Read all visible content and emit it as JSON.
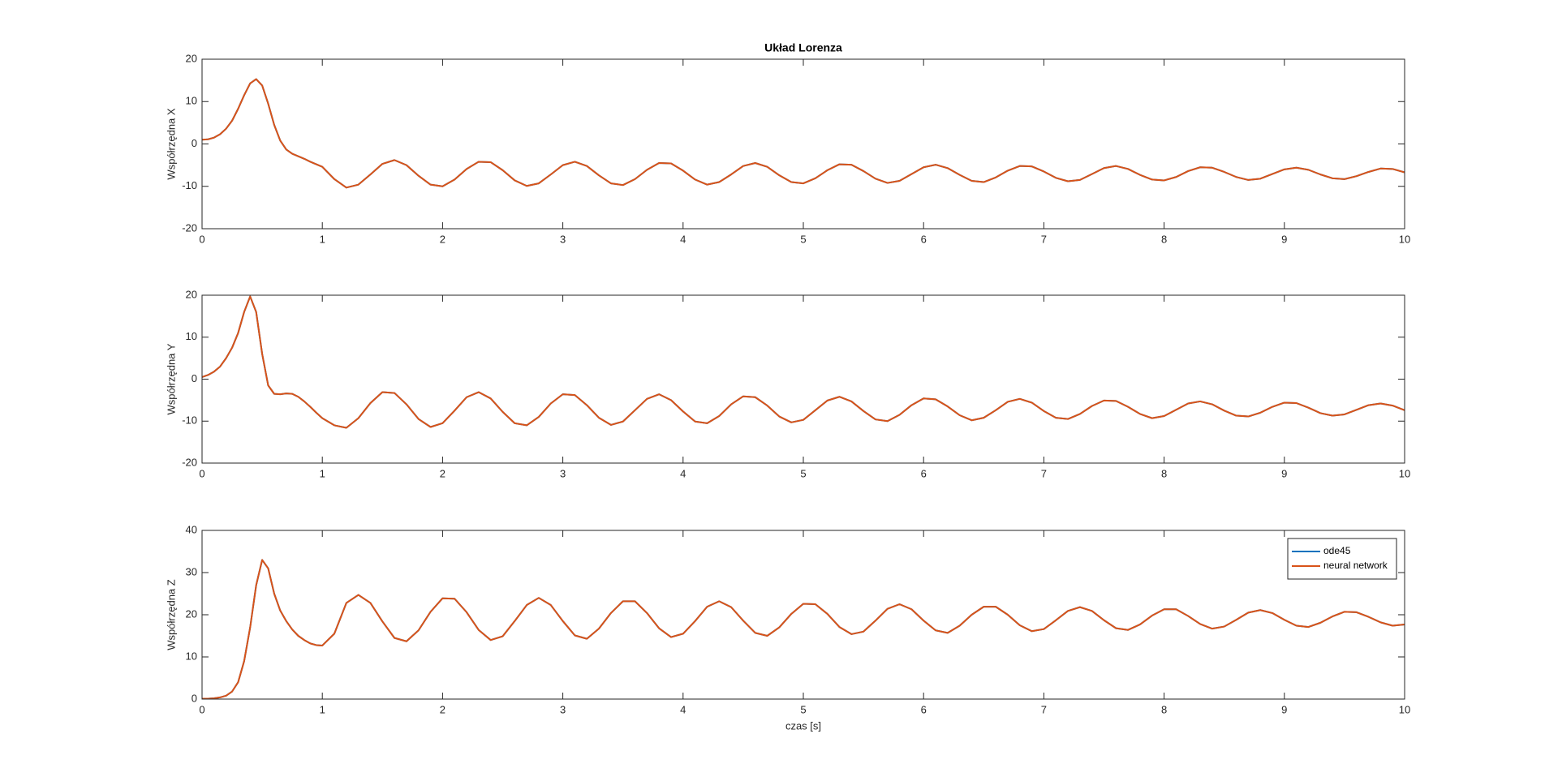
{
  "chart_data": [
    {
      "type": "line",
      "title": "Układ Lorenza",
      "ylabel": "Współrzędna X",
      "x": [
        0,
        0.05,
        0.1,
        0.15,
        0.2,
        0.25,
        0.3,
        0.35,
        0.4,
        0.45,
        0.5,
        0.55,
        0.6,
        0.65,
        0.7,
        0.75,
        0.8,
        0.85,
        0.9,
        0.95,
        1,
        1.1,
        1.2,
        1.3,
        1.4,
        1.5,
        1.6,
        1.7,
        1.8,
        1.9,
        2,
        2.1,
        2.2,
        2.3,
        2.4,
        2.5,
        2.6,
        2.7,
        2.8,
        2.9,
        3,
        3.1,
        3.2,
        3.3,
        3.4,
        3.5,
        3.6,
        3.7,
        3.8,
        3.9,
        4,
        4.1,
        4.2,
        4.3,
        4.4,
        4.5,
        4.6,
        4.7,
        4.8,
        4.9,
        5,
        5.1,
        5.2,
        5.3,
        5.4,
        5.5,
        5.6,
        5.7,
        5.8,
        5.9,
        6,
        6.1,
        6.2,
        6.3,
        6.4,
        6.5,
        6.6,
        6.7,
        6.8,
        6.9,
        7,
        7.1,
        7.2,
        7.3,
        7.4,
        7.5,
        7.6,
        7.7,
        7.8,
        7.9,
        8,
        8.1,
        8.2,
        8.3,
        8.4,
        8.5,
        8.6,
        8.7,
        8.8,
        8.9,
        9,
        9.1,
        9.2,
        9.3,
        9.4,
        9.5,
        9.6,
        9.7,
        9.8,
        9.9,
        10
      ],
      "series": [
        {
          "color": "#0072BD",
          "values": [
            1,
            1.1,
            1.5,
            2.3,
            3.6,
            5.5,
            8.3,
            11.5,
            14.3,
            15.3,
            13.8,
            9.5,
            4.5,
            0.8,
            -1.3,
            -2.3,
            -2.9,
            -3.5,
            -4.2,
            -4.8,
            -5.4,
            -8.3,
            -10.3,
            -9.6,
            -7.2,
            -4.7,
            -3.8,
            -5.0,
            -7.5,
            -9.6,
            -10.0,
            -8.4,
            -5.9,
            -4.2,
            -4.3,
            -6.2,
            -8.6,
            -9.9,
            -9.3,
            -7.2,
            -5.0,
            -4.2,
            -5.2,
            -7.4,
            -9.3,
            -9.7,
            -8.3,
            -6.1,
            -4.5,
            -4.6,
            -6.3,
            -8.4,
            -9.6,
            -9.0,
            -7.2,
            -5.2,
            -4.5,
            -5.4,
            -7.4,
            -9.0,
            -9.3,
            -8.1,
            -6.2,
            -4.8,
            -4.9,
            -6.4,
            -8.2,
            -9.2,
            -8.7,
            -7.1,
            -5.5,
            -4.9,
            -5.7,
            -7.3,
            -8.7,
            -9.0,
            -7.9,
            -6.3,
            -5.2,
            -5.3,
            -6.5,
            -8.0,
            -8.8,
            -8.5,
            -7.1,
            -5.7,
            -5.2,
            -5.9,
            -7.3,
            -8.4,
            -8.6,
            -7.8,
            -6.4,
            -5.5,
            -5.6,
            -6.6,
            -7.8,
            -8.5,
            -8.2,
            -7.1,
            -6.0,
            -5.6,
            -6.1,
            -7.2,
            -8.1,
            -8.3,
            -7.6,
            -6.6,
            -5.8,
            -5.9,
            -6.7
          ]
        },
        {
          "color": "#D95319",
          "values": [
            1,
            1.1,
            1.5,
            2.3,
            3.6,
            5.5,
            8.3,
            11.5,
            14.3,
            15.3,
            13.8,
            9.5,
            4.5,
            0.8,
            -1.3,
            -2.3,
            -2.9,
            -3.5,
            -4.2,
            -4.8,
            -5.4,
            -8.3,
            -10.3,
            -9.6,
            -7.2,
            -4.7,
            -3.8,
            -5.0,
            -7.5,
            -9.6,
            -10.0,
            -8.4,
            -5.9,
            -4.2,
            -4.3,
            -6.2,
            -8.6,
            -9.9,
            -9.3,
            -7.2,
            -5.0,
            -4.2,
            -5.2,
            -7.4,
            -9.3,
            -9.7,
            -8.3,
            -6.1,
            -4.5,
            -4.6,
            -6.3,
            -8.4,
            -9.6,
            -9.0,
            -7.2,
            -5.2,
            -4.5,
            -5.4,
            -7.4,
            -9.0,
            -9.3,
            -8.1,
            -6.2,
            -4.8,
            -4.9,
            -6.4,
            -8.2,
            -9.2,
            -8.7,
            -7.1,
            -5.5,
            -4.9,
            -5.7,
            -7.3,
            -8.7,
            -9.0,
            -7.9,
            -6.3,
            -5.2,
            -5.3,
            -6.5,
            -8.0,
            -8.8,
            -8.5,
            -7.1,
            -5.7,
            -5.2,
            -5.9,
            -7.3,
            -8.4,
            -8.6,
            -7.8,
            -6.4,
            -5.5,
            -5.6,
            -6.6,
            -7.8,
            -8.5,
            -8.2,
            -7.1,
            -6.0,
            -5.6,
            -6.1,
            -7.2,
            -8.1,
            -8.3,
            -7.6,
            -6.6,
            -5.8,
            -5.9,
            -6.7
          ]
        }
      ],
      "xlim": [
        0,
        10
      ],
      "xticks": [
        0,
        1,
        2,
        3,
        4,
        5,
        6,
        7,
        8,
        9,
        10
      ],
      "ylim": [
        -20,
        20
      ],
      "yticks": [
        -20,
        -10,
        0,
        10,
        20
      ],
      "grid": false
    },
    {
      "type": "line",
      "ylabel": "Współrzędna Y",
      "x": [
        0,
        0.05,
        0.1,
        0.15,
        0.2,
        0.25,
        0.3,
        0.35,
        0.4,
        0.45,
        0.5,
        0.55,
        0.6,
        0.65,
        0.7,
        0.75,
        0.8,
        0.85,
        0.9,
        0.95,
        1,
        1.1,
        1.2,
        1.3,
        1.4,
        1.5,
        1.6,
        1.7,
        1.8,
        1.9,
        2,
        2.1,
        2.2,
        2.3,
        2.4,
        2.5,
        2.6,
        2.7,
        2.8,
        2.9,
        3,
        3.1,
        3.2,
        3.3,
        3.4,
        3.5,
        3.6,
        3.7,
        3.8,
        3.9,
        4,
        4.1,
        4.2,
        4.3,
        4.4,
        4.5,
        4.6,
        4.7,
        4.8,
        4.9,
        5,
        5.1,
        5.2,
        5.3,
        5.4,
        5.5,
        5.6,
        5.7,
        5.8,
        5.9,
        6,
        6.1,
        6.2,
        6.3,
        6.4,
        6.5,
        6.6,
        6.7,
        6.8,
        6.9,
        7,
        7.1,
        7.2,
        7.3,
        7.4,
        7.5,
        7.6,
        7.7,
        7.8,
        7.9,
        8,
        8.1,
        8.2,
        8.3,
        8.4,
        8.5,
        8.6,
        8.7,
        8.8,
        8.9,
        9,
        9.1,
        9.2,
        9.3,
        9.4,
        9.5,
        9.6,
        9.7,
        9.8,
        9.9,
        10
      ],
      "series": [
        {
          "color": "#0072BD",
          "values": [
            0.5,
            1,
            1.8,
            3,
            5,
            7.5,
            11,
            16,
            19.7,
            16,
            6,
            -1.5,
            -3.5,
            -3.6,
            -3.4,
            -3.5,
            -4.2,
            -5.3,
            -6.6,
            -8,
            -9.3,
            -11.0,
            -11.6,
            -9.3,
            -5.7,
            -3.1,
            -3.3,
            -6.0,
            -9.5,
            -11.4,
            -10.5,
            -7.5,
            -4.3,
            -3.1,
            -4.6,
            -7.8,
            -10.5,
            -11.0,
            -9.0,
            -5.8,
            -3.6,
            -3.8,
            -6.2,
            -9.2,
            -10.9,
            -10.1,
            -7.4,
            -4.7,
            -3.6,
            -5.0,
            -7.7,
            -10.1,
            -10.5,
            -8.8,
            -6.0,
            -4.1,
            -4.3,
            -6.3,
            -8.9,
            -10.3,
            -9.7,
            -7.4,
            -5.1,
            -4.2,
            -5.3,
            -7.6,
            -9.6,
            -10.0,
            -8.5,
            -6.2,
            -4.6,
            -4.8,
            -6.5,
            -8.6,
            -9.8,
            -9.2,
            -7.4,
            -5.4,
            -4.7,
            -5.6,
            -7.6,
            -9.2,
            -9.5,
            -8.3,
            -6.4,
            -5.1,
            -5.2,
            -6.6,
            -8.3,
            -9.3,
            -8.8,
            -7.3,
            -5.8,
            -5.3,
            -6.0,
            -7.5,
            -8.7,
            -8.9,
            -8.0,
            -6.6,
            -5.6,
            -5.7,
            -6.8,
            -8.1,
            -8.7,
            -8.4,
            -7.3,
            -6.2,
            -5.8,
            -6.3,
            -7.4
          ]
        },
        {
          "color": "#D95319",
          "values": [
            0.5,
            1,
            1.8,
            3,
            5,
            7.5,
            11,
            16,
            19.7,
            16,
            6,
            -1.5,
            -3.5,
            -3.6,
            -3.4,
            -3.5,
            -4.2,
            -5.3,
            -6.6,
            -8,
            -9.3,
            -11.0,
            -11.6,
            -9.3,
            -5.7,
            -3.1,
            -3.3,
            -6.0,
            -9.5,
            -11.4,
            -10.5,
            -7.5,
            -4.3,
            -3.1,
            -4.6,
            -7.8,
            -10.5,
            -11.0,
            -9.0,
            -5.8,
            -3.6,
            -3.8,
            -6.2,
            -9.2,
            -10.9,
            -10.1,
            -7.4,
            -4.7,
            -3.6,
            -5.0,
            -7.7,
            -10.1,
            -10.5,
            -8.8,
            -6.0,
            -4.1,
            -4.3,
            -6.3,
            -8.9,
            -10.3,
            -9.7,
            -7.4,
            -5.1,
            -4.2,
            -5.3,
            -7.6,
            -9.6,
            -10.0,
            -8.5,
            -6.2,
            -4.6,
            -4.8,
            -6.5,
            -8.6,
            -9.8,
            -9.2,
            -7.4,
            -5.4,
            -4.7,
            -5.6,
            -7.6,
            -9.2,
            -9.5,
            -8.3,
            -6.4,
            -5.1,
            -5.2,
            -6.6,
            -8.3,
            -9.3,
            -8.8,
            -7.3,
            -5.8,
            -5.3,
            -6.0,
            -7.5,
            -8.7,
            -8.9,
            -8.0,
            -6.6,
            -5.6,
            -5.7,
            -6.8,
            -8.1,
            -8.7,
            -8.4,
            -7.3,
            -6.2,
            -5.8,
            -6.3,
            -7.4
          ]
        }
      ],
      "xlim": [
        0,
        10
      ],
      "xticks": [
        0,
        1,
        2,
        3,
        4,
        5,
        6,
        7,
        8,
        9,
        10
      ],
      "ylim": [
        -20,
        20
      ],
      "yticks": [
        -20,
        -10,
        0,
        10,
        20
      ],
      "grid": false
    },
    {
      "type": "line",
      "ylabel": "Współrzędna Z",
      "xlabel": "czas [s]",
      "x": [
        0,
        0.05,
        0.1,
        0.15,
        0.2,
        0.25,
        0.3,
        0.35,
        0.4,
        0.45,
        0.5,
        0.55,
        0.6,
        0.65,
        0.7,
        0.75,
        0.8,
        0.85,
        0.9,
        0.95,
        1,
        1.1,
        1.2,
        1.3,
        1.4,
        1.5,
        1.6,
        1.7,
        1.8,
        1.9,
        2,
        2.1,
        2.2,
        2.3,
        2.4,
        2.5,
        2.6,
        2.7,
        2.8,
        2.9,
        3,
        3.1,
        3.2,
        3.3,
        3.4,
        3.5,
        3.6,
        3.7,
        3.8,
        3.9,
        4,
        4.1,
        4.2,
        4.3,
        4.4,
        4.5,
        4.6,
        4.7,
        4.8,
        4.9,
        5,
        5.1,
        5.2,
        5.3,
        5.4,
        5.5,
        5.6,
        5.7,
        5.8,
        5.9,
        6,
        6.1,
        6.2,
        6.3,
        6.4,
        6.5,
        6.6,
        6.7,
        6.8,
        6.9,
        7,
        7.1,
        7.2,
        7.3,
        7.4,
        7.5,
        7.6,
        7.7,
        7.8,
        7.9,
        8,
        8.1,
        8.2,
        8.3,
        8.4,
        8.5,
        8.6,
        8.7,
        8.8,
        8.9,
        9,
        9.1,
        9.2,
        9.3,
        9.4,
        9.5,
        9.6,
        9.7,
        9.8,
        9.9,
        10
      ],
      "series": [
        {
          "name": "ode45",
          "color": "#0072BD",
          "values": [
            0.1,
            0.1,
            0.2,
            0.4,
            0.8,
            1.8,
            4,
            9,
            17,
            27,
            33,
            31,
            25,
            21,
            18.5,
            16.5,
            15,
            14,
            13.2,
            12.8,
            12.7,
            15.5,
            22.8,
            24.7,
            22.8,
            18.4,
            14.5,
            13.7,
            16.3,
            20.7,
            23.9,
            23.8,
            20.6,
            16.4,
            14.0,
            14.9,
            18.5,
            22.3,
            24.0,
            22.3,
            18.5,
            15.1,
            14.3,
            16.7,
            20.4,
            23.2,
            23.2,
            20.4,
            16.8,
            14.7,
            15.5,
            18.5,
            21.9,
            23.2,
            21.8,
            18.6,
            15.7,
            15.0,
            17.0,
            20.2,
            22.6,
            22.5,
            20.2,
            17.1,
            15.4,
            16.0,
            18.6,
            21.4,
            22.5,
            21.3,
            18.6,
            16.3,
            15.7,
            17.4,
            20.0,
            21.9,
            21.9,
            20.0,
            17.5,
            16.1,
            16.6,
            18.7,
            20.9,
            21.8,
            20.9,
            18.7,
            16.8,
            16.4,
            17.7,
            19.8,
            21.3,
            21.3,
            19.7,
            17.8,
            16.7,
            17.2,
            18.8,
            20.5,
            21.1,
            20.4,
            18.8,
            17.4,
            17.1,
            18.1,
            19.6,
            20.7,
            20.6,
            19.5,
            18.2,
            17.4,
            17.7
          ]
        },
        {
          "name": "neural network",
          "color": "#D95319",
          "values": [
            0.1,
            0.1,
            0.2,
            0.4,
            0.8,
            1.8,
            4,
            9,
            17,
            27,
            33,
            31,
            25,
            21,
            18.5,
            16.5,
            15,
            14,
            13.2,
            12.8,
            12.7,
            15.5,
            22.8,
            24.7,
            22.8,
            18.4,
            14.5,
            13.7,
            16.3,
            20.7,
            23.9,
            23.8,
            20.6,
            16.4,
            14.0,
            14.9,
            18.5,
            22.3,
            24.0,
            22.3,
            18.5,
            15.1,
            14.3,
            16.7,
            20.4,
            23.2,
            23.2,
            20.4,
            16.8,
            14.7,
            15.5,
            18.5,
            21.9,
            23.2,
            21.8,
            18.6,
            15.7,
            15.0,
            17.0,
            20.2,
            22.6,
            22.5,
            20.2,
            17.1,
            15.4,
            16.0,
            18.6,
            21.4,
            22.5,
            21.3,
            18.6,
            16.3,
            15.7,
            17.4,
            20.0,
            21.9,
            21.9,
            20.0,
            17.5,
            16.1,
            16.6,
            18.7,
            20.9,
            21.8,
            20.9,
            18.7,
            16.8,
            16.4,
            17.7,
            19.8,
            21.3,
            21.3,
            19.7,
            17.8,
            16.7,
            17.2,
            18.8,
            20.5,
            21.1,
            20.4,
            18.8,
            17.4,
            17.1,
            18.1,
            19.6,
            20.7,
            20.6,
            19.5,
            18.2,
            17.4,
            17.7
          ]
        }
      ],
      "xlim": [
        0,
        10
      ],
      "xticks": [
        0,
        1,
        2,
        3,
        4,
        5,
        6,
        7,
        8,
        9,
        10
      ],
      "ylim": [
        0,
        40
      ],
      "yticks": [
        0,
        10,
        20,
        30,
        40
      ],
      "grid": false,
      "legend": "northeast"
    }
  ]
}
